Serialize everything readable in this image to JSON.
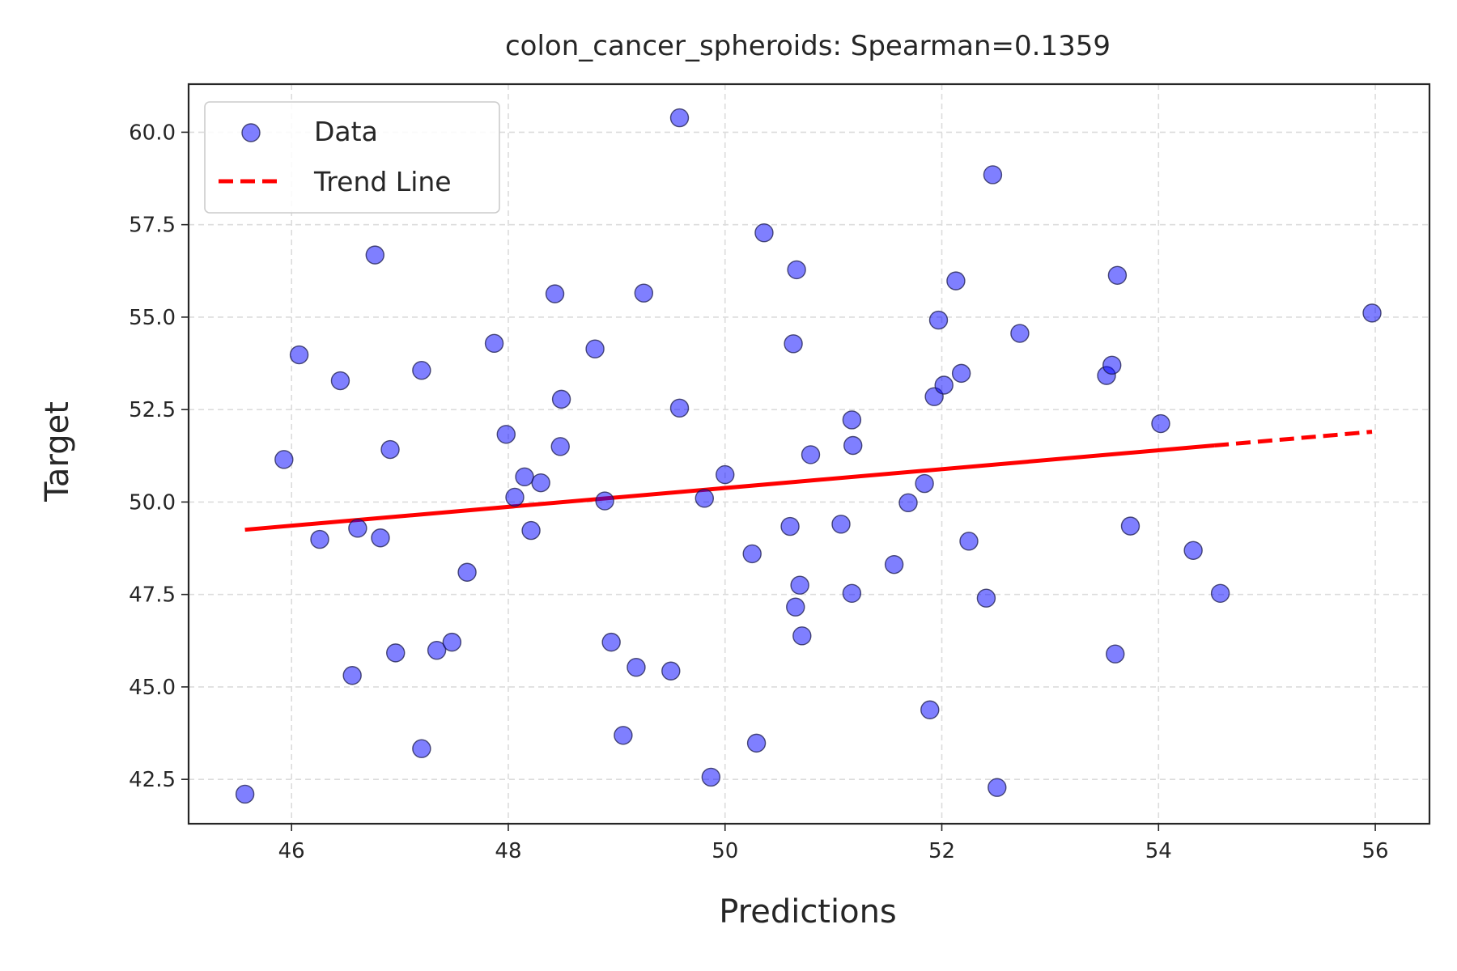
{
  "chart_data": {
    "type": "scatter",
    "title": "colon_cancer_spheroids: Spearman=0.1359",
    "xlabel": "Predictions",
    "ylabel": "Target",
    "xlim": [
      45.05,
      56.5
    ],
    "ylim": [
      41.3,
      61.3
    ],
    "xticks": [
      46,
      48,
      50,
      52,
      54,
      56
    ],
    "yticks": [
      42.5,
      45.0,
      47.5,
      50.0,
      52.5,
      55.0,
      57.5,
      60.0
    ],
    "grid": true,
    "legend": {
      "placement": "top-left",
      "entries": [
        {
          "label": "Data",
          "kind": "marker"
        },
        {
          "label": "Trend Line",
          "kind": "dashed-line"
        }
      ]
    },
    "colors": {
      "points": "#0000ff",
      "trend": "#ff0000"
    },
    "trend_line": {
      "x": [
        45.57,
        55.97
      ],
      "y": [
        49.25,
        51.9
      ]
    },
    "series": [
      {
        "name": "Data",
        "points": [
          [
            45.57,
            42.1
          ],
          [
            45.93,
            51.15
          ],
          [
            46.07,
            53.98
          ],
          [
            46.26,
            48.99
          ],
          [
            46.45,
            53.28
          ],
          [
            46.56,
            45.31
          ],
          [
            46.61,
            49.29
          ],
          [
            46.77,
            56.68
          ],
          [
            46.82,
            49.03
          ],
          [
            46.91,
            51.42
          ],
          [
            46.96,
            45.92
          ],
          [
            47.2,
            53.56
          ],
          [
            47.2,
            43.33
          ],
          [
            47.34,
            45.99
          ],
          [
            47.48,
            46.21
          ],
          [
            47.62,
            48.1
          ],
          [
            47.87,
            54.29
          ],
          [
            47.98,
            51.83
          ],
          [
            48.06,
            50.13
          ],
          [
            48.15,
            50.68
          ],
          [
            48.21,
            49.23
          ],
          [
            48.3,
            50.52
          ],
          [
            48.43,
            55.63
          ],
          [
            48.48,
            51.5
          ],
          [
            48.49,
            52.78
          ],
          [
            48.8,
            54.14
          ],
          [
            48.89,
            50.03
          ],
          [
            48.95,
            46.21
          ],
          [
            49.06,
            43.69
          ],
          [
            49.18,
            45.53
          ],
          [
            49.25,
            55.65
          ],
          [
            49.5,
            45.43
          ],
          [
            49.58,
            60.39
          ],
          [
            49.58,
            52.54
          ],
          [
            49.81,
            50.1
          ],
          [
            49.87,
            42.56
          ],
          [
            50.0,
            50.74
          ],
          [
            50.25,
            48.6
          ],
          [
            50.29,
            43.48
          ],
          [
            50.36,
            57.28
          ],
          [
            50.6,
            49.34
          ],
          [
            50.63,
            54.28
          ],
          [
            50.66,
            56.28
          ],
          [
            50.65,
            47.16
          ],
          [
            50.69,
            47.75
          ],
          [
            50.71,
            46.38
          ],
          [
            50.79,
            51.28
          ],
          [
            51.07,
            49.4
          ],
          [
            51.17,
            47.53
          ],
          [
            51.17,
            52.22
          ],
          [
            51.18,
            51.53
          ],
          [
            51.56,
            48.31
          ],
          [
            51.69,
            49.98
          ],
          [
            51.84,
            50.5
          ],
          [
            51.89,
            44.38
          ],
          [
            51.93,
            52.85
          ],
          [
            51.97,
            54.92
          ],
          [
            52.02,
            53.16
          ],
          [
            52.13,
            55.98
          ],
          [
            52.18,
            53.48
          ],
          [
            52.25,
            48.94
          ],
          [
            52.41,
            47.4
          ],
          [
            52.47,
            58.85
          ],
          [
            52.51,
            42.28
          ],
          [
            52.72,
            54.56
          ],
          [
            53.52,
            53.42
          ],
          [
            53.57,
            53.7
          ],
          [
            53.6,
            45.89
          ],
          [
            53.62,
            56.13
          ],
          [
            53.74,
            49.35
          ],
          [
            54.02,
            52.12
          ],
          [
            54.32,
            48.69
          ],
          [
            54.57,
            47.53
          ],
          [
            55.97,
            55.11
          ]
        ]
      }
    ]
  }
}
